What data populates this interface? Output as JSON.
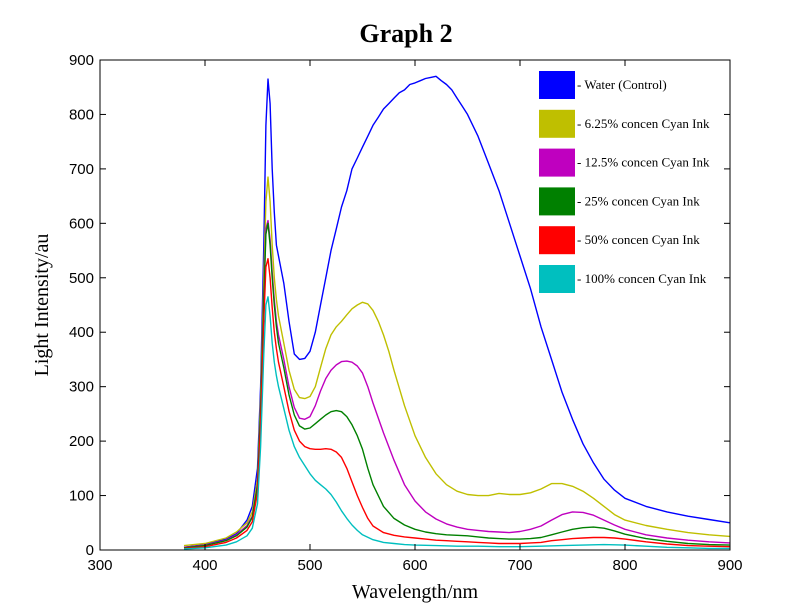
{
  "chart_data": {
    "type": "line",
    "title": "Graph 2",
    "xlabel": "Wavelength/nm",
    "ylabel": "Light Intensity/au",
    "xlim": [
      300,
      900
    ],
    "ylim": [
      0,
      900
    ],
    "xticks": [
      300,
      400,
      500,
      600,
      700,
      800,
      900
    ],
    "yticks": [
      0,
      100,
      200,
      300,
      400,
      500,
      600,
      700,
      800,
      900
    ],
    "grid": false,
    "legend_position": "top-right",
    "series": [
      {
        "name": "Water (Control)",
        "color": "#0000ff",
        "x": [
          380,
          400,
          420,
          430,
          440,
          445,
          450,
          453,
          456,
          458,
          460,
          462,
          464,
          466,
          468,
          470,
          475,
          480,
          485,
          490,
          495,
          500,
          505,
          510,
          515,
          520,
          525,
          530,
          535,
          540,
          545,
          550,
          555,
          560,
          565,
          570,
          575,
          580,
          585,
          590,
          595,
          600,
          605,
          610,
          615,
          620,
          625,
          630,
          635,
          640,
          645,
          650,
          660,
          670,
          680,
          690,
          700,
          710,
          720,
          730,
          740,
          750,
          760,
          770,
          780,
          790,
          800,
          820,
          840,
          860,
          880,
          900
        ],
        "y": [
          5,
          10,
          20,
          30,
          55,
          80,
          150,
          300,
          560,
          780,
          865,
          820,
          700,
          620,
          560,
          540,
          490,
          420,
          360,
          350,
          352,
          365,
          400,
          450,
          500,
          550,
          590,
          630,
          660,
          700,
          720,
          740,
          760,
          780,
          795,
          810,
          820,
          830,
          840,
          845,
          855,
          858,
          862,
          866,
          868,
          870,
          862,
          855,
          845,
          830,
          815,
          800,
          760,
          710,
          660,
          600,
          540,
          480,
          410,
          350,
          290,
          240,
          195,
          160,
          130,
          110,
          95,
          80,
          70,
          62,
          56,
          50
        ]
      },
      {
        "name": "6.25% concen Cyan Ink",
        "color": "#bfbf00",
        "x": [
          380,
          400,
          420,
          430,
          440,
          445,
          450,
          453,
          456,
          458,
          460,
          462,
          464,
          466,
          468,
          470,
          475,
          480,
          485,
          490,
          495,
          500,
          505,
          510,
          515,
          520,
          525,
          530,
          535,
          540,
          545,
          550,
          555,
          560,
          565,
          570,
          575,
          580,
          590,
          600,
          610,
          620,
          630,
          640,
          650,
          660,
          670,
          680,
          690,
          700,
          710,
          720,
          730,
          740,
          750,
          760,
          770,
          780,
          790,
          800,
          820,
          840,
          860,
          880,
          900
        ],
        "y": [
          8,
          12,
          22,
          33,
          50,
          70,
          130,
          280,
          500,
          640,
          685,
          640,
          560,
          500,
          460,
          430,
          380,
          330,
          295,
          280,
          278,
          282,
          300,
          335,
          370,
          395,
          410,
          420,
          432,
          443,
          450,
          455,
          452,
          440,
          420,
          395,
          365,
          330,
          265,
          210,
          170,
          140,
          120,
          108,
          102,
          100,
          100,
          104,
          102,
          102,
          105,
          112,
          122,
          122,
          117,
          108,
          95,
          80,
          65,
          55,
          45,
          38,
          32,
          28,
          25
        ]
      },
      {
        "name": "12.5% concen Cyan Ink",
        "color": "#bf00bf",
        "x": [
          380,
          400,
          420,
          430,
          440,
          445,
          450,
          453,
          456,
          458,
          460,
          462,
          464,
          466,
          468,
          470,
          475,
          480,
          485,
          490,
          495,
          500,
          505,
          510,
          515,
          520,
          525,
          530,
          535,
          540,
          545,
          550,
          555,
          560,
          570,
          580,
          590,
          600,
          610,
          620,
          630,
          640,
          650,
          660,
          670,
          680,
          690,
          700,
          710,
          720,
          730,
          740,
          750,
          760,
          770,
          780,
          790,
          800,
          820,
          840,
          860,
          880,
          900
        ],
        "y": [
          5,
          9,
          18,
          28,
          45,
          62,
          120,
          260,
          470,
          590,
          605,
          570,
          510,
          460,
          420,
          395,
          350,
          300,
          262,
          242,
          240,
          245,
          265,
          292,
          315,
          330,
          340,
          346,
          347,
          345,
          338,
          325,
          300,
          270,
          215,
          165,
          120,
          90,
          70,
          57,
          48,
          42,
          38,
          36,
          34,
          33,
          32,
          34,
          38,
          44,
          55,
          65,
          70,
          69,
          64,
          55,
          46,
          38,
          28,
          22,
          18,
          15,
          13
        ]
      },
      {
        "name": "25% concen Cyan Ink",
        "color": "#008000",
        "x": [
          380,
          400,
          420,
          430,
          440,
          445,
          450,
          453,
          456,
          458,
          460,
          462,
          464,
          466,
          468,
          470,
          475,
          480,
          485,
          490,
          495,
          500,
          505,
          510,
          515,
          520,
          525,
          530,
          535,
          540,
          545,
          550,
          555,
          560,
          570,
          580,
          590,
          600,
          610,
          620,
          630,
          640,
          650,
          660,
          670,
          680,
          690,
          700,
          710,
          720,
          730,
          740,
          750,
          760,
          770,
          780,
          790,
          800,
          820,
          840,
          860,
          880,
          900
        ],
        "y": [
          4,
          8,
          17,
          26,
          42,
          60,
          118,
          255,
          460,
          580,
          600,
          560,
          500,
          450,
          410,
          380,
          335,
          285,
          248,
          228,
          222,
          224,
          232,
          240,
          248,
          254,
          256,
          254,
          245,
          230,
          210,
          185,
          150,
          120,
          80,
          58,
          46,
          38,
          33,
          30,
          28,
          27,
          26,
          24,
          22,
          21,
          20,
          20,
          21,
          23,
          28,
          33,
          38,
          41,
          42,
          40,
          35,
          29,
          21,
          16,
          12,
          10,
          9
        ]
      },
      {
        "name": "50% concen Cyan Ink",
        "color": "#ff0000",
        "x": [
          380,
          400,
          420,
          430,
          440,
          445,
          450,
          453,
          456,
          458,
          460,
          462,
          464,
          466,
          468,
          470,
          475,
          480,
          485,
          490,
          495,
          500,
          505,
          510,
          515,
          520,
          525,
          530,
          535,
          540,
          545,
          550,
          555,
          560,
          570,
          580,
          590,
          600,
          610,
          620,
          630,
          640,
          650,
          660,
          670,
          680,
          690,
          700,
          710,
          720,
          730,
          740,
          750,
          760,
          770,
          780,
          790,
          800,
          820,
          840,
          860,
          880,
          900
        ],
        "y": [
          3,
          6,
          14,
          22,
          36,
          52,
          105,
          230,
          420,
          520,
          535,
          500,
          445,
          400,
          370,
          345,
          300,
          255,
          220,
          200,
          190,
          186,
          185,
          185,
          186,
          185,
          180,
          170,
          150,
          125,
          100,
          78,
          58,
          44,
          32,
          27,
          24,
          22,
          20,
          18,
          17,
          16,
          15,
          14,
          13,
          12,
          12,
          12,
          13,
          14,
          17,
          19,
          21,
          22,
          23,
          23,
          22,
          20,
          15,
          11,
          8,
          7,
          6
        ]
      },
      {
        "name": "100% concen Cyan Ink",
        "color": "#00bfbf",
        "x": [
          380,
          400,
          420,
          430,
          440,
          445,
          450,
          453,
          456,
          458,
          460,
          462,
          464,
          466,
          468,
          470,
          475,
          480,
          485,
          490,
          495,
          500,
          505,
          510,
          515,
          520,
          525,
          530,
          535,
          540,
          545,
          550,
          560,
          570,
          580,
          590,
          600,
          620,
          640,
          660,
          680,
          700,
          720,
          740,
          760,
          780,
          800,
          820,
          840,
          860,
          880,
          900
        ],
        "y": [
          2,
          4,
          9,
          15,
          26,
          40,
          85,
          190,
          360,
          450,
          465,
          430,
          380,
          345,
          320,
          300,
          260,
          220,
          190,
          170,
          155,
          140,
          128,
          120,
          112,
          102,
          88,
          72,
          58,
          46,
          36,
          28,
          19,
          14,
          12,
          10,
          9,
          8,
          7,
          7,
          6,
          6,
          7,
          8,
          9,
          10,
          9,
          7,
          5,
          4,
          3,
          3
        ]
      }
    ]
  }
}
